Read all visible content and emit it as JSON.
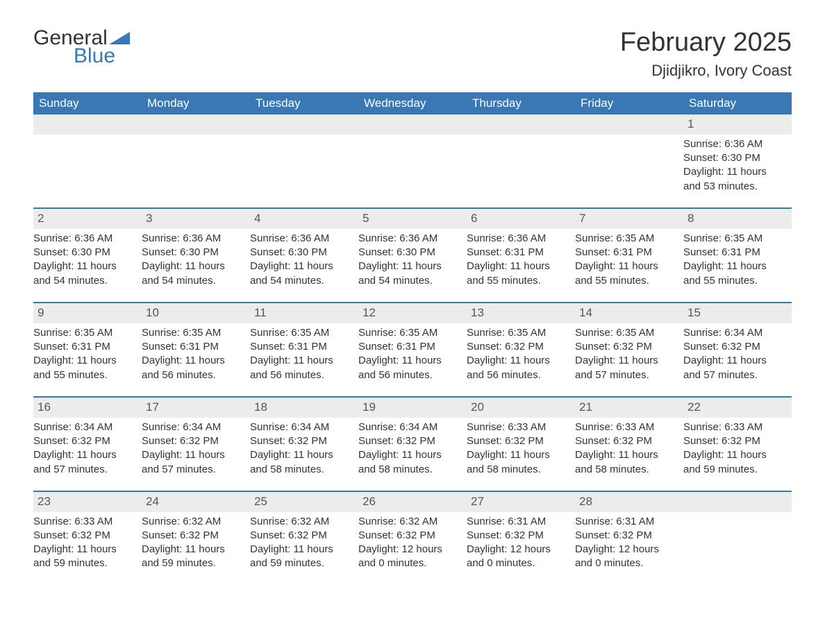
{
  "logo": {
    "text_general": "General",
    "text_blue": "Blue",
    "icon_color": "#3a78b5"
  },
  "title": {
    "month": "February 2025",
    "location": "Djidjikro, Ivory Coast"
  },
  "colors": {
    "header_bg": "#3a78b5",
    "header_text": "#ffffff",
    "row_bg": "#ececec",
    "row_border": "#3a78b5",
    "body_text": "#333333",
    "background": "#ffffff"
  },
  "typography": {
    "month_title_fontsize": 38,
    "location_fontsize": 22,
    "weekday_fontsize": 17,
    "daynum_fontsize": 17,
    "detail_fontsize": 15
  },
  "weekdays": [
    "Sunday",
    "Monday",
    "Tuesday",
    "Wednesday",
    "Thursday",
    "Friday",
    "Saturday"
  ],
  "weeks": [
    [
      null,
      null,
      null,
      null,
      null,
      null,
      {
        "day": "1",
        "sunrise": "Sunrise: 6:36 AM",
        "sunset": "Sunset: 6:30 PM",
        "daylight": "Daylight: 11 hours and 53 minutes."
      }
    ],
    [
      {
        "day": "2",
        "sunrise": "Sunrise: 6:36 AM",
        "sunset": "Sunset: 6:30 PM",
        "daylight": "Daylight: 11 hours and 54 minutes."
      },
      {
        "day": "3",
        "sunrise": "Sunrise: 6:36 AM",
        "sunset": "Sunset: 6:30 PM",
        "daylight": "Daylight: 11 hours and 54 minutes."
      },
      {
        "day": "4",
        "sunrise": "Sunrise: 6:36 AM",
        "sunset": "Sunset: 6:30 PM",
        "daylight": "Daylight: 11 hours and 54 minutes."
      },
      {
        "day": "5",
        "sunrise": "Sunrise: 6:36 AM",
        "sunset": "Sunset: 6:30 PM",
        "daylight": "Daylight: 11 hours and 54 minutes."
      },
      {
        "day": "6",
        "sunrise": "Sunrise: 6:36 AM",
        "sunset": "Sunset: 6:31 PM",
        "daylight": "Daylight: 11 hours and 55 minutes."
      },
      {
        "day": "7",
        "sunrise": "Sunrise: 6:35 AM",
        "sunset": "Sunset: 6:31 PM",
        "daylight": "Daylight: 11 hours and 55 minutes."
      },
      {
        "day": "8",
        "sunrise": "Sunrise: 6:35 AM",
        "sunset": "Sunset: 6:31 PM",
        "daylight": "Daylight: 11 hours and 55 minutes."
      }
    ],
    [
      {
        "day": "9",
        "sunrise": "Sunrise: 6:35 AM",
        "sunset": "Sunset: 6:31 PM",
        "daylight": "Daylight: 11 hours and 55 minutes."
      },
      {
        "day": "10",
        "sunrise": "Sunrise: 6:35 AM",
        "sunset": "Sunset: 6:31 PM",
        "daylight": "Daylight: 11 hours and 56 minutes."
      },
      {
        "day": "11",
        "sunrise": "Sunrise: 6:35 AM",
        "sunset": "Sunset: 6:31 PM",
        "daylight": "Daylight: 11 hours and 56 minutes."
      },
      {
        "day": "12",
        "sunrise": "Sunrise: 6:35 AM",
        "sunset": "Sunset: 6:31 PM",
        "daylight": "Daylight: 11 hours and 56 minutes."
      },
      {
        "day": "13",
        "sunrise": "Sunrise: 6:35 AM",
        "sunset": "Sunset: 6:32 PM",
        "daylight": "Daylight: 11 hours and 56 minutes."
      },
      {
        "day": "14",
        "sunrise": "Sunrise: 6:35 AM",
        "sunset": "Sunset: 6:32 PM",
        "daylight": "Daylight: 11 hours and 57 minutes."
      },
      {
        "day": "15",
        "sunrise": "Sunrise: 6:34 AM",
        "sunset": "Sunset: 6:32 PM",
        "daylight": "Daylight: 11 hours and 57 minutes."
      }
    ],
    [
      {
        "day": "16",
        "sunrise": "Sunrise: 6:34 AM",
        "sunset": "Sunset: 6:32 PM",
        "daylight": "Daylight: 11 hours and 57 minutes."
      },
      {
        "day": "17",
        "sunrise": "Sunrise: 6:34 AM",
        "sunset": "Sunset: 6:32 PM",
        "daylight": "Daylight: 11 hours and 57 minutes."
      },
      {
        "day": "18",
        "sunrise": "Sunrise: 6:34 AM",
        "sunset": "Sunset: 6:32 PM",
        "daylight": "Daylight: 11 hours and 58 minutes."
      },
      {
        "day": "19",
        "sunrise": "Sunrise: 6:34 AM",
        "sunset": "Sunset: 6:32 PM",
        "daylight": "Daylight: 11 hours and 58 minutes."
      },
      {
        "day": "20",
        "sunrise": "Sunrise: 6:33 AM",
        "sunset": "Sunset: 6:32 PM",
        "daylight": "Daylight: 11 hours and 58 minutes."
      },
      {
        "day": "21",
        "sunrise": "Sunrise: 6:33 AM",
        "sunset": "Sunset: 6:32 PM",
        "daylight": "Daylight: 11 hours and 58 minutes."
      },
      {
        "day": "22",
        "sunrise": "Sunrise: 6:33 AM",
        "sunset": "Sunset: 6:32 PM",
        "daylight": "Daylight: 11 hours and 59 minutes."
      }
    ],
    [
      {
        "day": "23",
        "sunrise": "Sunrise: 6:33 AM",
        "sunset": "Sunset: 6:32 PM",
        "daylight": "Daylight: 11 hours and 59 minutes."
      },
      {
        "day": "24",
        "sunrise": "Sunrise: 6:32 AM",
        "sunset": "Sunset: 6:32 PM",
        "daylight": "Daylight: 11 hours and 59 minutes."
      },
      {
        "day": "25",
        "sunrise": "Sunrise: 6:32 AM",
        "sunset": "Sunset: 6:32 PM",
        "daylight": "Daylight: 11 hours and 59 minutes."
      },
      {
        "day": "26",
        "sunrise": "Sunrise: 6:32 AM",
        "sunset": "Sunset: 6:32 PM",
        "daylight": "Daylight: 12 hours and 0 minutes."
      },
      {
        "day": "27",
        "sunrise": "Sunrise: 6:31 AM",
        "sunset": "Sunset: 6:32 PM",
        "daylight": "Daylight: 12 hours and 0 minutes."
      },
      {
        "day": "28",
        "sunrise": "Sunrise: 6:31 AM",
        "sunset": "Sunset: 6:32 PM",
        "daylight": "Daylight: 12 hours and 0 minutes."
      },
      null
    ]
  ]
}
